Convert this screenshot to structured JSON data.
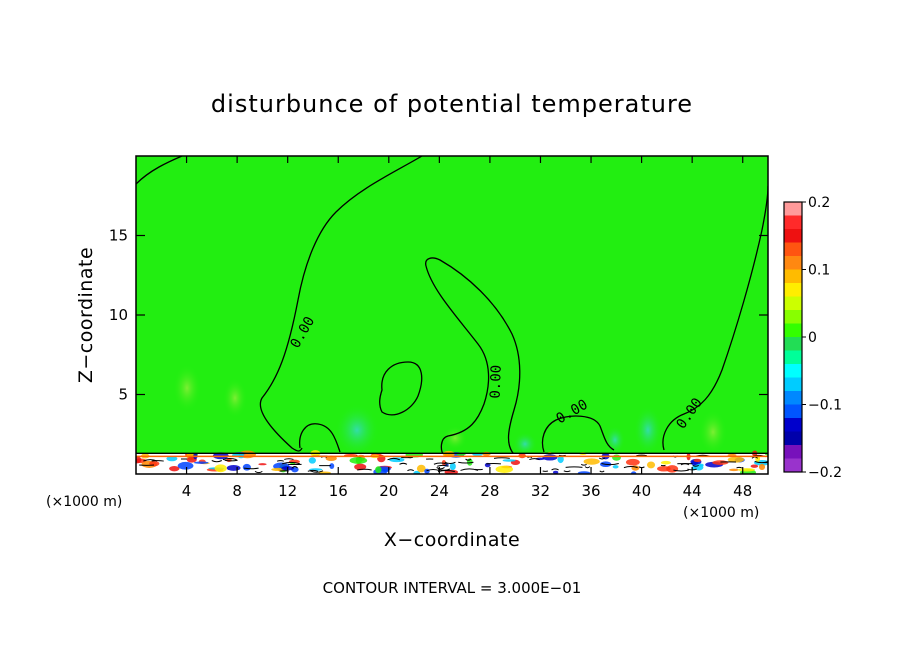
{
  "chart_data": {
    "type": "heatmap",
    "title": "disturbunce of potential temperature",
    "xlabel": "X−coordinate",
    "ylabel": "Z−coordinate",
    "x_unit_left": "(×1000 m)",
    "x_unit_right": "(×1000 m)",
    "xlim": [
      0,
      50
    ],
    "ylim": [
      0,
      20
    ],
    "x_ticks": [
      4,
      8,
      12,
      16,
      20,
      24,
      28,
      32,
      36,
      40,
      44,
      48
    ],
    "y_ticks": [
      5,
      10,
      15
    ],
    "background_color": "#22ee11",
    "colorbar": {
      "range": [
        -0.2,
        0.2
      ],
      "tick_values": [
        0.2,
        0.1,
        0,
        -0.1,
        -0.2
      ],
      "tick_labels": [
        "0.2",
        "0.1",
        "0",
        "−0.1",
        "−0.2"
      ],
      "colors_top_to_bottom": [
        "#ff9a9a",
        "#ff2a2a",
        "#ee1111",
        "#ff5511",
        "#ff8811",
        "#ffbb00",
        "#ffee00",
        "#ccff00",
        "#88ff00",
        "#33ff00",
        "#22dd55",
        "#00ff99",
        "#00ffff",
        "#00ccff",
        "#0088ff",
        "#0055ff",
        "#0000cc",
        "#0000aa",
        "#7711bb",
        "#9933cc"
      ]
    },
    "contour_labels": [
      {
        "text": "0.00",
        "x": 13.2,
        "z": 8.9,
        "angle": -60
      },
      {
        "text": "0.00",
        "x": 28.5,
        "z": 5.8,
        "angle": -88
      },
      {
        "text": "0.00",
        "x": 34.5,
        "z": 3.9,
        "angle": -30
      },
      {
        "text": "0.00",
        "x": 43.8,
        "z": 3.8,
        "angle": -55
      }
    ],
    "contour_interval_text": "CONTOUR INTERVAL = 3.000E−01"
  }
}
